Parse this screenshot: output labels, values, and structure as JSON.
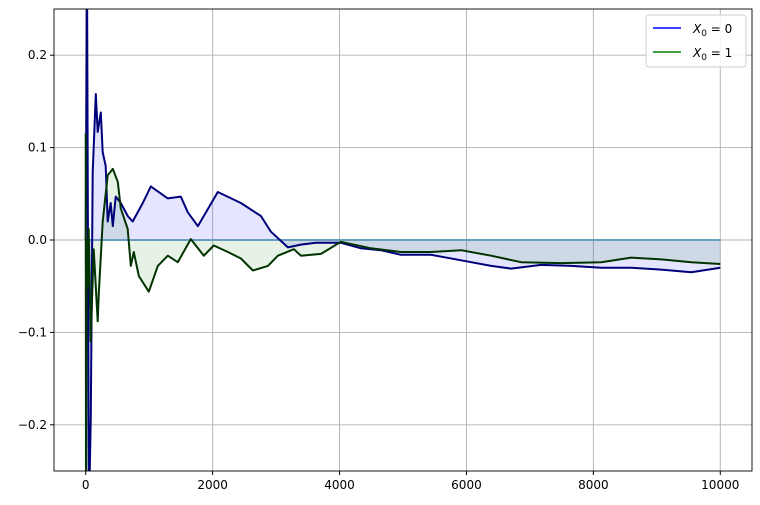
{
  "chart_data": {
    "type": "line",
    "title": "",
    "xlabel": "",
    "ylabel": "",
    "xlim": [
      -500,
      10500
    ],
    "ylim": [
      -0.25,
      0.25
    ],
    "grid": true,
    "legend_placement": "top-right",
    "x_ticks": [
      "0",
      "2000",
      "4000",
      "6000",
      "8000",
      "10000"
    ],
    "x_tick_values": [
      0,
      2000,
      4000,
      6000,
      8000,
      10000
    ],
    "y_ticks": [
      "−0.2",
      "−0.1",
      "0.0",
      "0.1",
      "0.2"
    ],
    "y_tick_values": [
      -0.2,
      -0.1,
      0.0,
      0.1,
      0.2
    ],
    "reference_line": {
      "y": 0,
      "color": "#6a9ec0"
    },
    "series": [
      {
        "name": "X0 = 0",
        "legend_label_main": "X",
        "legend_label_sub": "0",
        "legend_label_rest": " = 0",
        "legend_color": "#0000ff",
        "line_color": "#00007a",
        "fill_color": "#0000ff",
        "x": [
          0,
          20,
          50,
          80,
          110,
          158,
          189,
          237,
          268,
          315,
          347,
          394,
          426,
          473,
          552,
          662,
          741,
          899,
          1025,
          1293,
          1498,
          1609,
          1767,
          2082,
          2445,
          2760,
          2918,
          3186,
          3391,
          3628,
          4022,
          4338,
          4653,
          4968,
          5442,
          5915,
          6388,
          6703,
          7177,
          7650,
          8123,
          8596,
          9069,
          9543,
          10000
        ],
        "y": [
          0.0,
          0.3,
          -0.3,
          -0.19,
          0.073,
          0.158,
          0.117,
          0.138,
          0.095,
          0.08,
          0.02,
          0.04,
          0.015,
          0.047,
          0.04,
          0.026,
          0.02,
          0.04,
          0.058,
          0.045,
          0.047,
          0.03,
          0.015,
          0.052,
          0.04,
          0.026,
          0.009,
          -0.008,
          -0.005,
          -0.003,
          -0.003,
          -0.009,
          -0.011,
          -0.016,
          -0.016,
          -0.022,
          -0.028,
          -0.031,
          -0.027,
          -0.028,
          -0.03,
          -0.03,
          -0.032,
          -0.035,
          -0.03
        ]
      },
      {
        "name": "X0 = 1",
        "legend_label_main": "X",
        "legend_label_sub": "0",
        "legend_label_rest": " = 1",
        "legend_color": "#008000",
        "line_color": "#003300",
        "fill_color": "#008000",
        "x": [
          0,
          5,
          15,
          30,
          47,
          79,
          126,
          189,
          205,
          268,
          347,
          426,
          505,
          552,
          662,
          710,
          757,
          836,
          994,
          1136,
          1293,
          1451,
          1656,
          1861,
          2019,
          2240,
          2445,
          2634,
          2871,
          3028,
          3281,
          3391,
          3707,
          4022,
          4495,
          4968,
          5442,
          5915,
          6388,
          6861,
          7492,
          8123,
          8596,
          9069,
          9543,
          10000
        ],
        "y": [
          0.115,
          -0.3,
          0.0,
          -0.05,
          0.012,
          -0.11,
          -0.01,
          -0.088,
          -0.06,
          0.02,
          0.07,
          0.077,
          0.063,
          0.034,
          0.012,
          -0.028,
          -0.013,
          -0.039,
          -0.056,
          -0.028,
          -0.017,
          -0.024,
          0.001,
          -0.017,
          -0.006,
          -0.013,
          -0.02,
          -0.033,
          -0.028,
          -0.017,
          -0.01,
          -0.017,
          -0.015,
          -0.002,
          -0.009,
          -0.013,
          -0.013,
          -0.011,
          -0.017,
          -0.024,
          -0.025,
          -0.024,
          -0.019,
          -0.021,
          -0.024,
          -0.026
        ]
      }
    ]
  }
}
